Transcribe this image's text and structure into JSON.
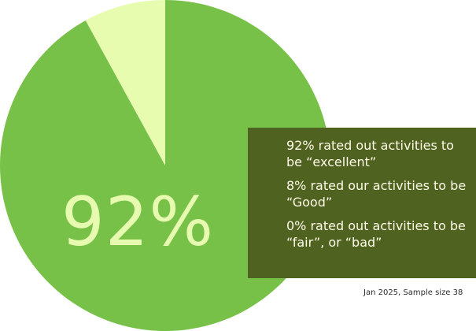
{
  "chart_data": {
    "type": "pie",
    "slices": [
      {
        "label": "excellent",
        "value": 92,
        "color": "#78c148"
      },
      {
        "label": "Good",
        "value": 8,
        "color": "#e8fcb0"
      },
      {
        "label": "fair / bad",
        "value": 0,
        "color": "#78c148"
      }
    ],
    "center_label": "92%",
    "legend": [
      "92% rated out activities to be “excellent”",
      "8% rated our activities to be “Good”",
      "0% rated out activities to be “fair”, or “bad”"
    ],
    "footnote": "Jan 2025, Sample size 38"
  },
  "colors": {
    "pie_main": "#78c148",
    "pie_minor": "#e8fcb0",
    "legend_bg": "#506220",
    "legend_text": "#fdfbe8",
    "big_value": "#e6fbb0"
  }
}
